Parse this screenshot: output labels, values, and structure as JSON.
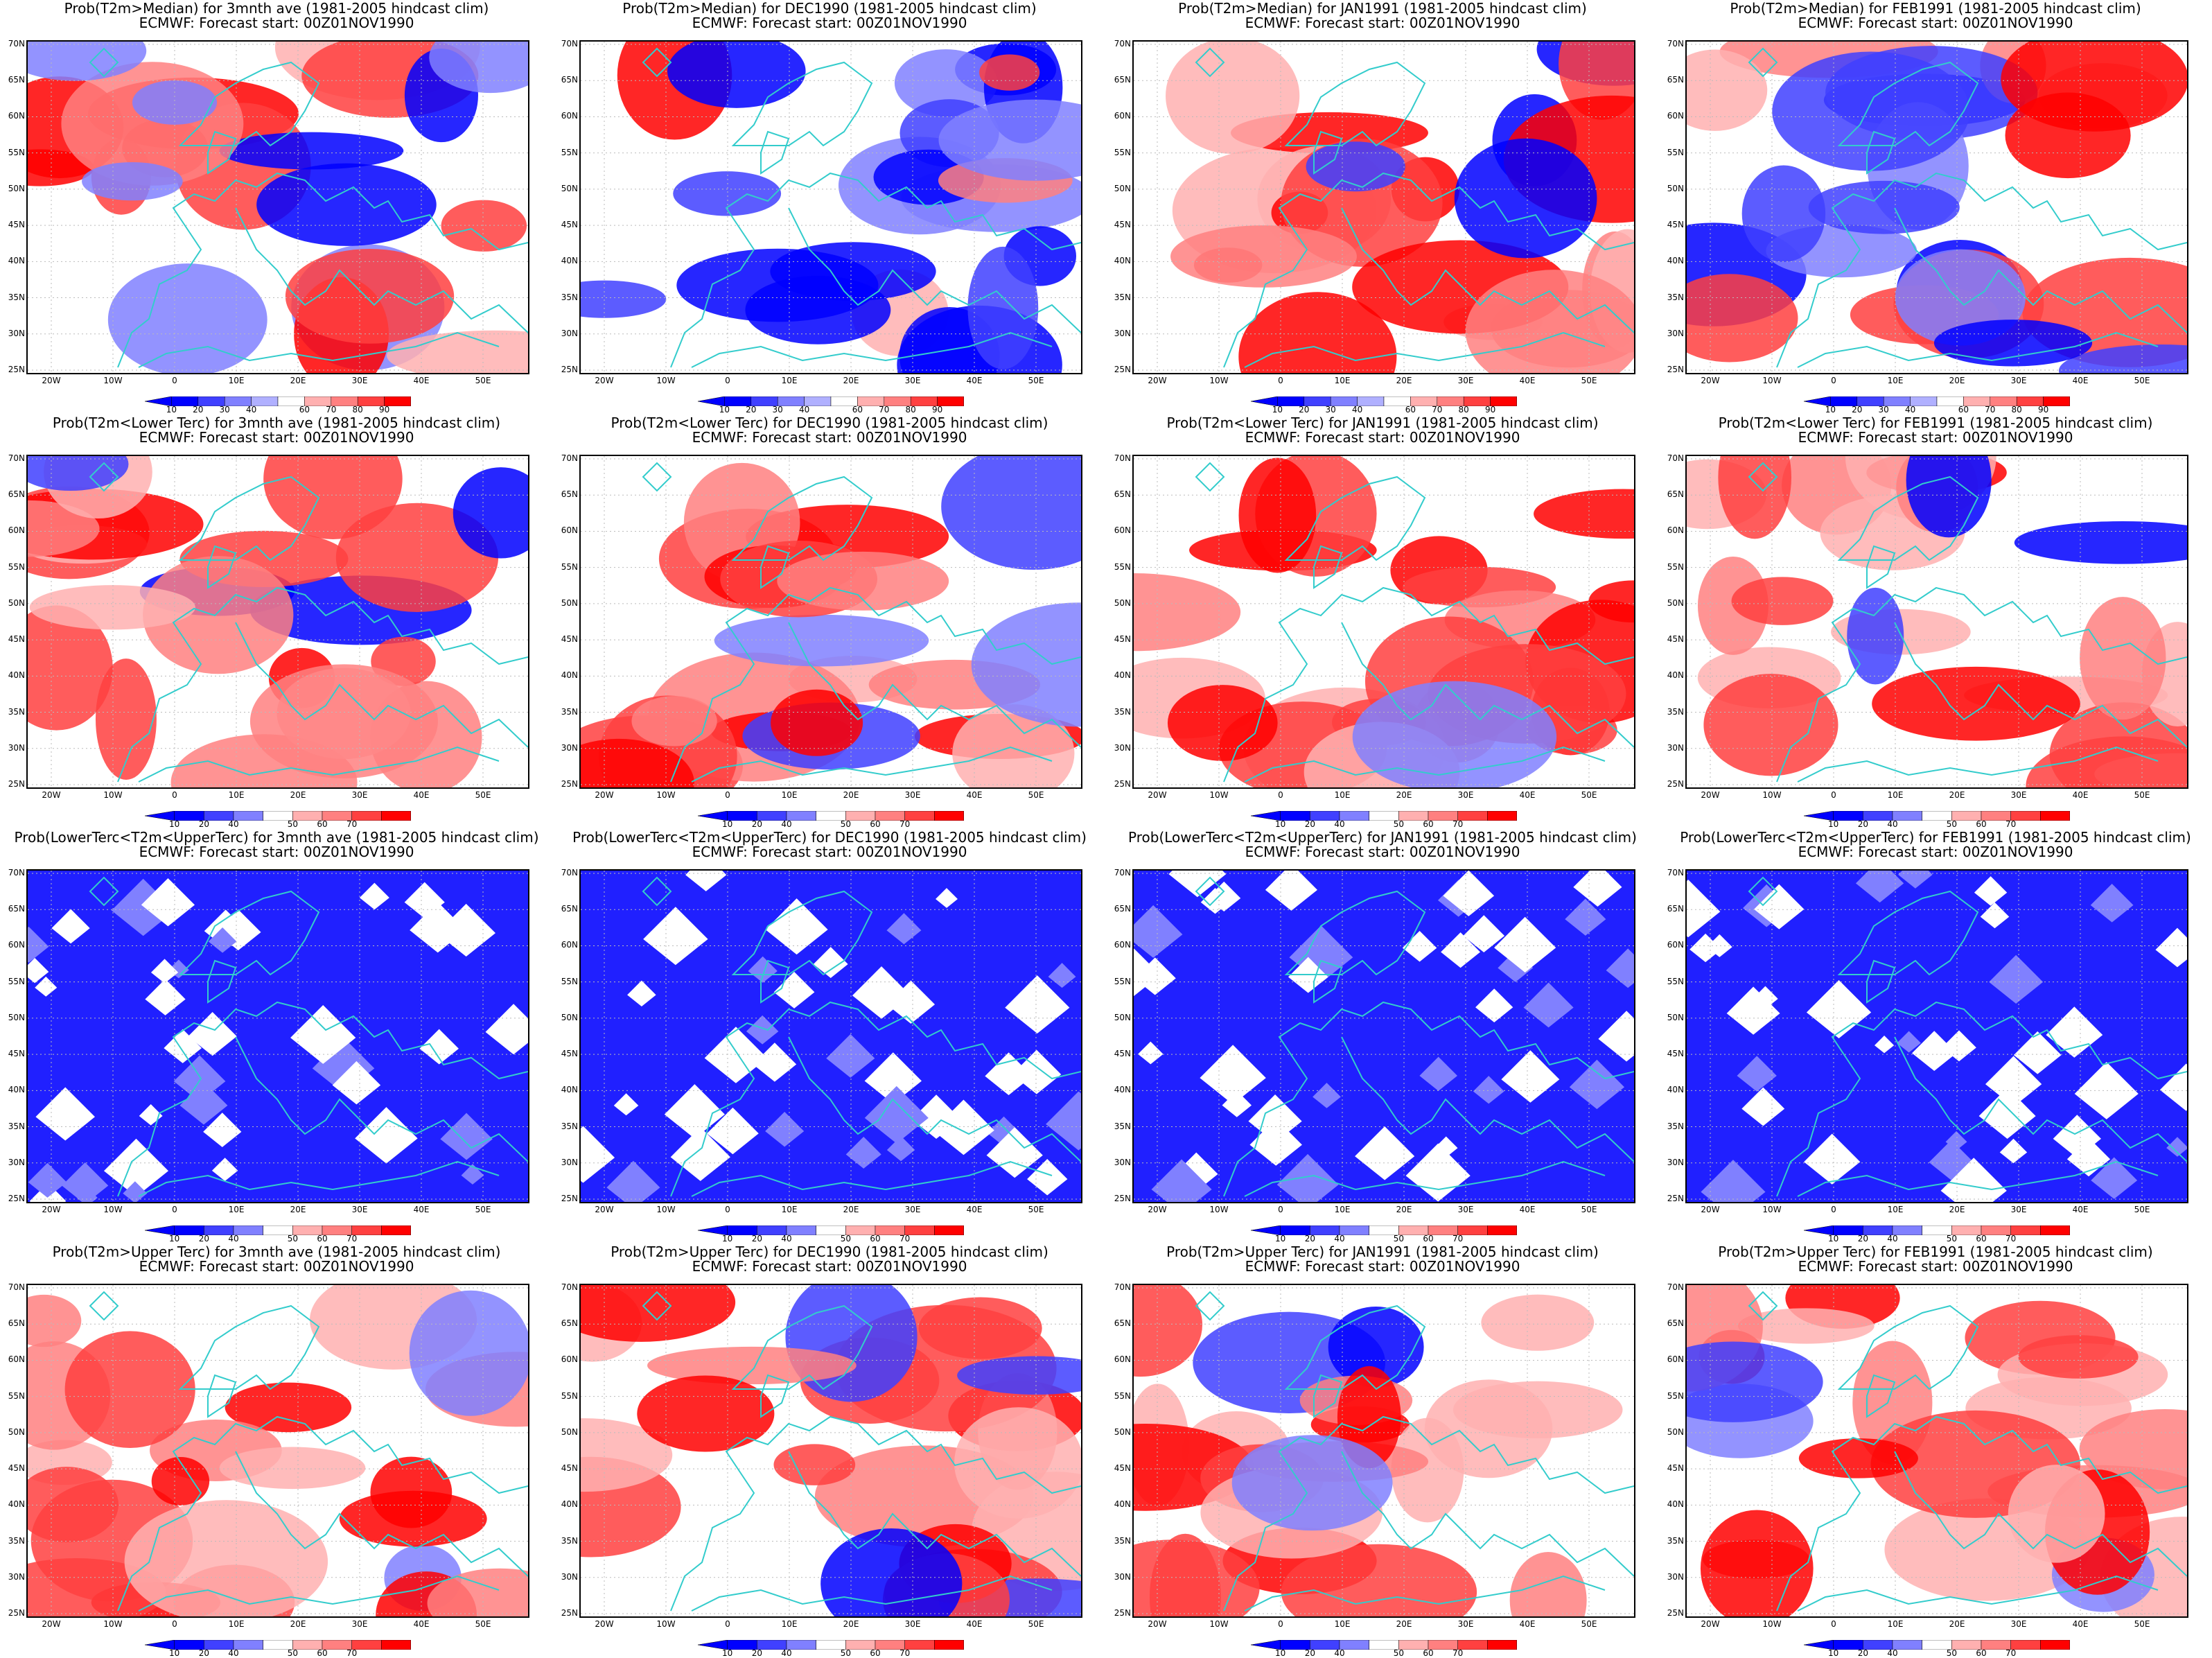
{
  "subtitle": "ECMWF: Forecast start: 00Z01NOV1990",
  "lat_labels": [
    "70N",
    "65N",
    "60N",
    "55N",
    "50N",
    "45N",
    "40N",
    "35N",
    "30N",
    "25N"
  ],
  "lon_labels": [
    "20W",
    "10W",
    "0",
    "10E",
    "20E",
    "30E",
    "40E",
    "50E"
  ],
  "colorbars": {
    "median": {
      "labels": [
        "10",
        "20",
        "30",
        "40",
        "60",
        "70",
        "80",
        "90"
      ],
      "colors": [
        "#0000ff",
        "#4040ff",
        "#8080ff",
        "#b0b0ff",
        "#ffb0b0",
        "#ff8080",
        "#ff4040",
        "#ff0000"
      ]
    },
    "tercile": {
      "labels": [
        "10",
        "20",
        "40",
        "50",
        "60",
        "70"
      ],
      "colors": [
        "#0000ff",
        "#4040ff",
        "#8080ff",
        "#ffb0b0",
        "#ff8080",
        "#ff4040",
        "#ff0000"
      ]
    }
  },
  "colors": {
    "coast": "#33cccc",
    "grid": "#bbbbbb",
    "frame": "#000000"
  },
  "rows": [
    {
      "id": "median",
      "colorbar": "median",
      "titles": [
        "Prob(T2m>Median) for 3mnth ave (1981-2005 hindcast clim)",
        "Prob(T2m>Median) for DEC1990 (1981-2005 hindcast clim)",
        "Prob(T2m>Median) for JAN1991 (1981-2005 hindcast clim)",
        "Prob(T2m>Median) for FEB1991 (1981-2005 hindcast clim)"
      ]
    },
    {
      "id": "lower",
      "colorbar": "tercile",
      "titles": [
        "Prob(T2m<Lower Terc) for 3mnth ave (1981-2005 hindcast clim)",
        "Prob(T2m<Lower Terc) for DEC1990 (1981-2005 hindcast clim)",
        "Prob(T2m<Lower Terc) for JAN1991 (1981-2005 hindcast clim)",
        "Prob(T2m<Lower Terc) for FEB1991 (1981-2005 hindcast clim)"
      ]
    },
    {
      "id": "middle",
      "colorbar": "tercile",
      "titles": [
        "Prob(LowerTerc<T2m<UpperTerc) for 3mnth ave (1981-2005 hindcast clim)",
        "Prob(LowerTerc<T2m<UpperTerc) for DEC1990 (1981-2005 hindcast clim)",
        "Prob(LowerTerc<T2m<UpperTerc) for JAN1991 (1981-2005 hindcast clim)",
        "Prob(LowerTerc<T2m<UpperTerc) for FEB1991 (1981-2005 hindcast clim)"
      ]
    },
    {
      "id": "upper",
      "colorbar": "tercile",
      "titles": [
        "Prob(T2m>Upper Terc) for 3mnth ave (1981-2005 hindcast clim)",
        "Prob(T2m>Upper Terc) for DEC1990 (1981-2005 hindcast clim)",
        "Prob(T2m>Upper Terc) for JAN1991 (1981-2005 hindcast clim)",
        "Prob(T2m>Upper Terc) for FEB1991 (1981-2005 hindcast clim)"
      ]
    }
  ]
}
